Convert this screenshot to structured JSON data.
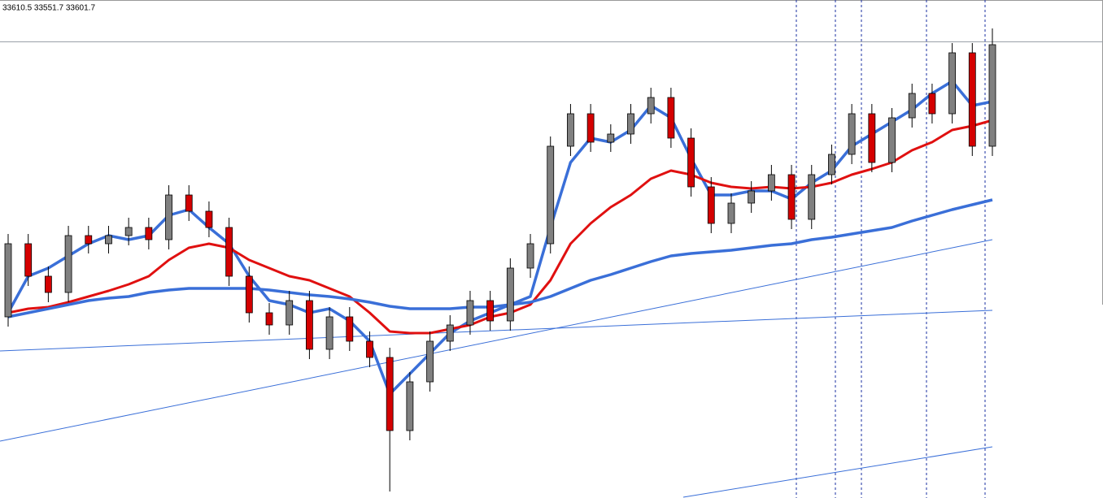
{
  "chart_data": {
    "type": "candlestick",
    "title": "33610.5 33551.7 33601.7",
    "ylim": [
      33040,
      33653
    ],
    "up_color": "#808080",
    "down_color": "#d40000",
    "open": [
      33263,
      33353,
      33313,
      33293,
      33363,
      33353,
      33363,
      33373,
      33358,
      33413,
      33393,
      33373,
      33313,
      33268,
      33253,
      33283,
      33223,
      33263,
      33233,
      33213,
      33123,
      33183,
      33233,
      33253,
      33283,
      33258,
      33323,
      33353,
      33473,
      33513,
      33478,
      33488,
      33513,
      33533,
      33483,
      33423,
      33378,
      33403,
      33418,
      33438,
      33383,
      33438,
      33463,
      33513,
      33453,
      33508,
      33538,
      33513,
      33588,
      33473
    ],
    "high": [
      33365,
      33365,
      33325,
      33375,
      33375,
      33375,
      33385,
      33385,
      33425,
      33425,
      33405,
      33385,
      33325,
      33280,
      33295,
      33295,
      33275,
      33275,
      33245,
      33225,
      33195,
      33245,
      33265,
      33295,
      33295,
      33335,
      33365,
      33485,
      33525,
      33525,
      33500,
      33525,
      33545,
      33545,
      33495,
      33435,
      33415,
      33430,
      33450,
      33450,
      33450,
      33475,
      33525,
      33525,
      33520,
      33550,
      33550,
      33600,
      33600,
      33618
    ],
    "low": [
      33251,
      33301,
      33281,
      33281,
      33341,
      33341,
      33351,
      33346,
      33346,
      33381,
      33361,
      33301,
      33256,
      33241,
      33241,
      33211,
      33211,
      33221,
      33201,
      33048,
      33111,
      33171,
      33221,
      33241,
      33246,
      33246,
      33311,
      33341,
      33461,
      33466,
      33466,
      33476,
      33501,
      33471,
      33411,
      33366,
      33366,
      33391,
      33406,
      33371,
      33371,
      33426,
      33451,
      33441,
      33441,
      33496,
      33501,
      33501,
      33461,
      33461
    ],
    "close": [
      33353,
      33313,
      33293,
      33363,
      33353,
      33363,
      33373,
      33358,
      33413,
      33393,
      33373,
      33313,
      33268,
      33253,
      33283,
      33223,
      33263,
      33233,
      33213,
      33123,
      33183,
      33233,
      33253,
      33283,
      33258,
      33323,
      33353,
      33473,
      33513,
      33478,
      33488,
      33513,
      33533,
      33483,
      33423,
      33378,
      33403,
      33418,
      33438,
      33383,
      33438,
      33463,
      33513,
      33453,
      33508,
      33538,
      33513,
      33588,
      33473,
      33598
    ],
    "series": [
      {
        "color": "#3a6fd8",
        "values": [
          33268,
          33313,
          33323,
          33338,
          33353,
          33363,
          33358,
          33363,
          33388,
          33395,
          33373,
          33353,
          33313,
          33283,
          33278,
          33268,
          33273,
          33258,
          33233,
          33168,
          33193,
          33218,
          33243,
          33258,
          33268,
          33278,
          33288,
          33373,
          33453,
          33483,
          33478,
          33493,
          33523,
          33508,
          33458,
          33413,
          33413,
          33418,
          33418,
          33408,
          33428,
          33443,
          33473,
          33488,
          33503,
          33518,
          33538,
          33553,
          33523,
          33528
        ]
      },
      {
        "color": "#e01010",
        "values": [
          33268,
          33273,
          33275,
          33281,
          33288,
          33295,
          33303,
          33313,
          33333,
          33348,
          33353,
          33348,
          33333,
          33323,
          33313,
          33308,
          33298,
          33288,
          33268,
          33245,
          33243,
          33243,
          33248,
          33253,
          33263,
          33268,
          33278,
          33308,
          33353,
          33378,
          33398,
          33413,
          33433,
          33443,
          33438,
          33428,
          33423,
          33421,
          33423,
          33421,
          33423,
          33428,
          33438,
          33445,
          33453,
          33468,
          33478,
          33493,
          33498,
          33505
        ]
      },
      {
        "color": "#3a6fd8",
        "values": [
          33263,
          33268,
          33273,
          33278,
          33283,
          33286,
          33288,
          33293,
          33296,
          33298,
          33298,
          33298,
          33298,
          33296,
          33293,
          33290,
          33288,
          33285,
          33281,
          33276,
          33273,
          33273,
          33273,
          33275,
          33275,
          33278,
          33281,
          33288,
          33298,
          33308,
          33315,
          33323,
          33331,
          33338,
          33341,
          33343,
          33345,
          33348,
          33351,
          33353,
          33358,
          33361,
          33365,
          33369,
          33373,
          33381,
          33388,
          33395,
          33401,
          33407
        ]
      }
    ]
  }
}
